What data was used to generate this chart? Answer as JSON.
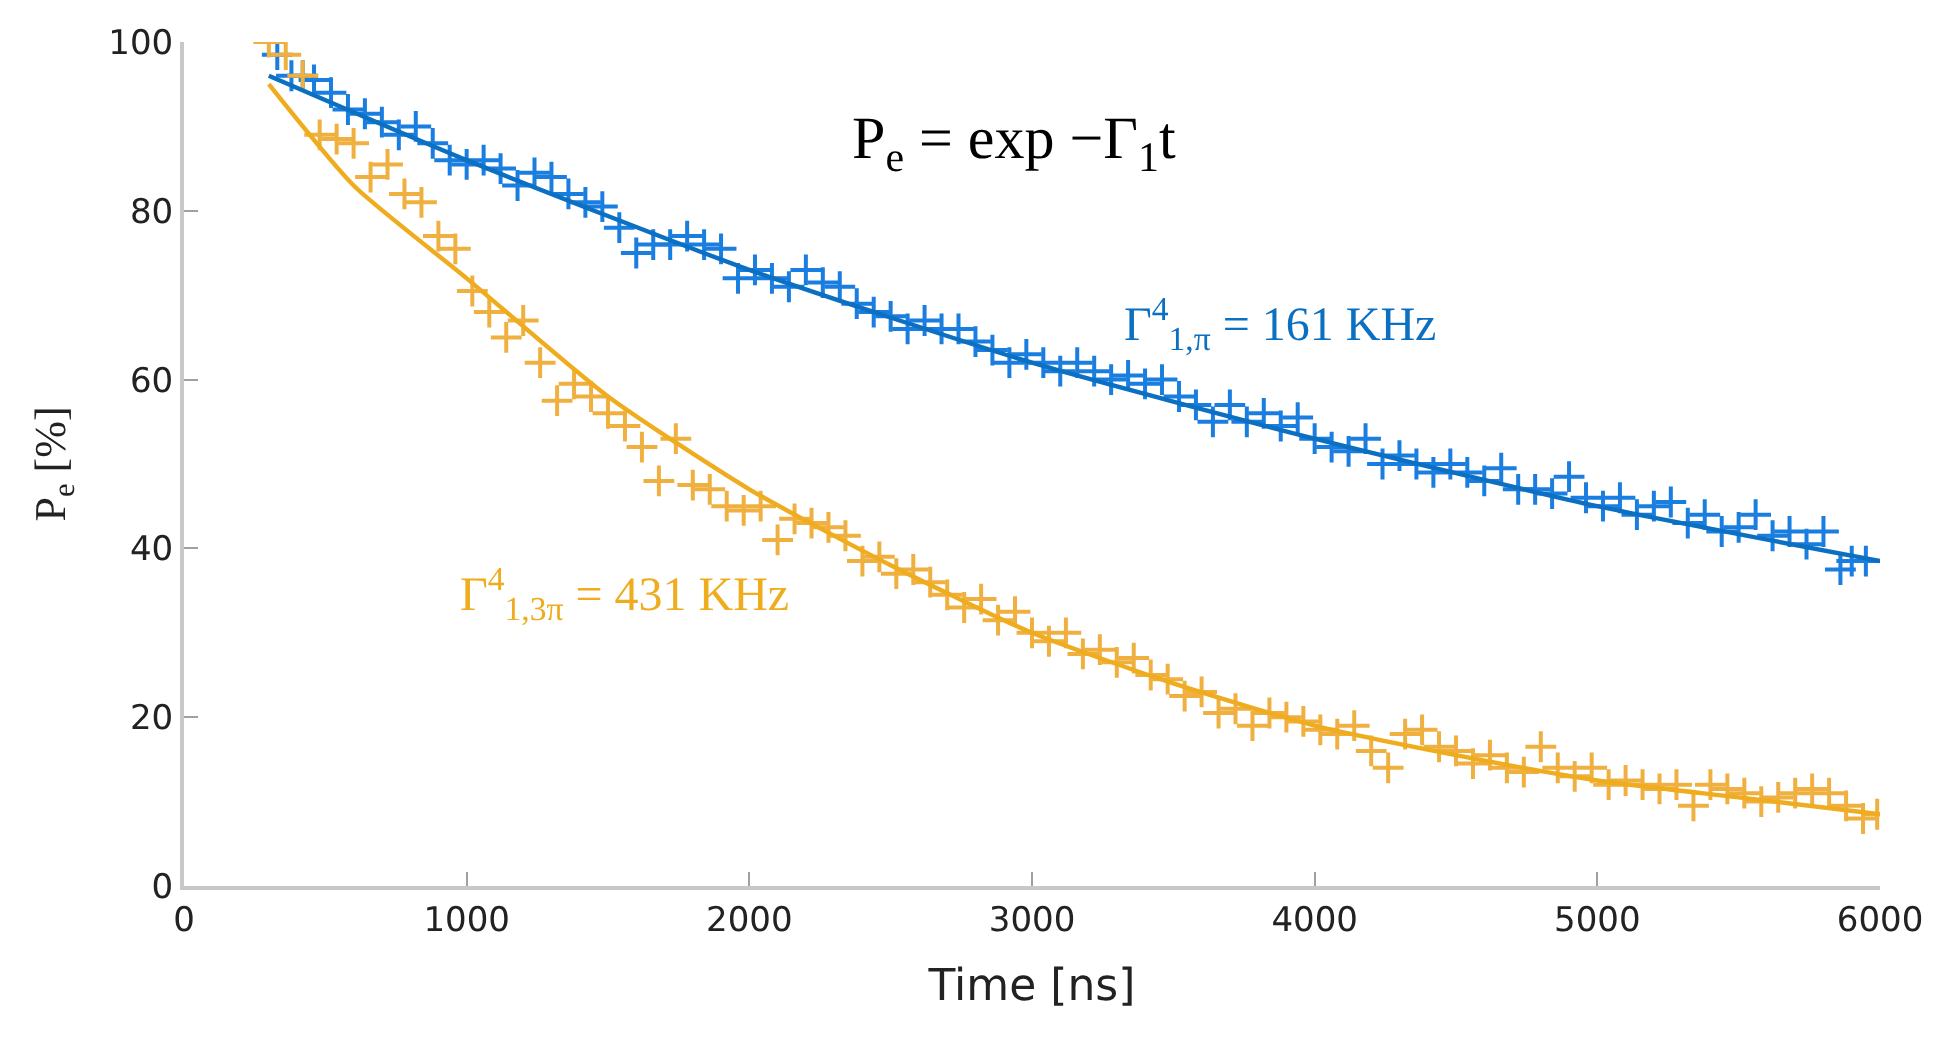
{
  "chart_data": {
    "type": "scatter",
    "xlabel": "Time [ns]",
    "ylabel": "P$_{e}$ [%]",
    "annotations": [
      "P$_{e}$ = exp −Γ$_{1}$t",
      "Γ$^{4}$$_{1,π}$ = 161 KHz",
      "Γ$^{4}$$_{1,3π}$ = 431 KHz"
    ],
    "xlim": [
      0,
      6000
    ],
    "xticks": [
      0,
      1000,
      2000,
      3000,
      4000,
      5000,
      6000
    ],
    "ylim": [
      0,
      100
    ],
    "yticks": [
      0,
      20,
      40,
      60,
      80,
      100
    ],
    "legend": false,
    "series": [
      {
        "marker": "cross",
        "color": "#1a7de0",
        "x": [
          330,
          380,
          420,
          460,
          520,
          580,
          640,
          700,
          760,
          820,
          880,
          940,
          1000,
          1060,
          1120,
          1180,
          1240,
          1300,
          1360,
          1420,
          1480,
          1540,
          1600,
          1660,
          1720,
          1780,
          1840,
          1900,
          1960,
          2020,
          2080,
          2140,
          2200,
          2260,
          2320,
          2380,
          2440,
          2500,
          2560,
          2620,
          2680,
          2740,
          2800,
          2860,
          2920,
          2980,
          3040,
          3100,
          3160,
          3220,
          3280,
          3340,
          3400,
          3460,
          3520,
          3580,
          3640,
          3700,
          3760,
          3820,
          3880,
          3940,
          4000,
          4060,
          4120,
          4180,
          4240,
          4300,
          4360,
          4420,
          4480,
          4540,
          4600,
          4660,
          4720,
          4780,
          4840,
          4900,
          4960,
          5020,
          5080,
          5140,
          5200,
          5260,
          5320,
          5380,
          5440,
          5500,
          5560,
          5620,
          5680,
          5740,
          5800,
          5860,
          5900,
          5950
        ],
        "values": [
          98.5,
          96,
          96,
          95.5,
          94,
          92,
          91.5,
          90.5,
          89,
          90,
          88,
          86,
          85.5,
          86,
          85,
          83,
          84.5,
          84,
          82,
          81,
          80.5,
          78,
          75,
          76,
          76,
          77,
          76,
          75.5,
          72,
          73,
          72,
          71,
          73,
          71.5,
          71,
          69,
          68,
          67.5,
          66,
          67,
          66,
          66,
          64.5,
          63.5,
          62,
          63,
          62,
          61,
          62,
          61,
          60,
          60.5,
          59.5,
          60,
          58,
          57,
          55,
          57,
          55,
          56,
          54.5,
          55.5,
          53,
          52,
          51.5,
          53,
          50,
          51,
          50,
          49,
          50,
          49,
          48,
          49.5,
          47,
          47,
          46.5,
          48.5,
          46,
          45,
          46,
          44,
          45,
          45.5,
          43,
          44,
          42,
          42.5,
          44,
          41.5,
          42,
          40.5,
          42,
          37.5,
          38.5,
          38.5
        ]
      },
      {
        "marker": "cross",
        "color": "#f0b040",
        "x": [
          300,
          360,
          420,
          480,
          540,
          600,
          660,
          720,
          780,
          840,
          900,
          960,
          1020,
          1080,
          1140,
          1200,
          1260,
          1320,
          1380,
          1440,
          1500,
          1560,
          1620,
          1680,
          1740,
          1800,
          1860,
          1920,
          1980,
          2040,
          2100,
          2160,
          2220,
          2280,
          2340,
          2400,
          2460,
          2520,
          2580,
          2640,
          2700,
          2760,
          2820,
          2880,
          2940,
          3000,
          3060,
          3120,
          3180,
          3240,
          3300,
          3360,
          3420,
          3480,
          3540,
          3600,
          3660,
          3720,
          3780,
          3840,
          3900,
          3960,
          4020,
          4080,
          4140,
          4200,
          4260,
          4320,
          4380,
          4440,
          4500,
          4560,
          4620,
          4680,
          4740,
          4800,
          4860,
          4920,
          4980,
          5040,
          5100,
          5160,
          5220,
          5280,
          5340,
          5400,
          5460,
          5520,
          5580,
          5640,
          5700,
          5760,
          5820,
          5880,
          5940,
          5990
        ],
        "values": [
          100,
          98.5,
          96,
          89,
          88.5,
          88,
          84,
          85.5,
          82,
          81,
          77,
          75.5,
          70.5,
          68,
          65,
          67,
          62,
          57.5,
          59.5,
          58,
          56,
          54.5,
          52,
          48,
          53,
          47.5,
          47,
          45,
          44.5,
          45,
          41,
          43.5,
          43,
          42.5,
          41.5,
          38.5,
          39,
          37,
          37.5,
          36,
          34.5,
          33,
          34,
          31.5,
          32.5,
          30,
          29,
          30,
          27.5,
          28,
          26.5,
          27,
          25,
          24.5,
          22.5,
          23,
          20.5,
          21,
          19,
          20.5,
          20,
          19.5,
          18.5,
          18,
          19,
          16,
          14,
          18,
          18.5,
          16.5,
          16,
          14.5,
          15.5,
          14,
          13.5,
          16.5,
          14,
          13,
          14,
          12,
          12.5,
          12,
          11.5,
          12,
          9.5,
          12,
          11.5,
          11,
          10,
          10.5,
          11,
          11.5,
          11,
          9.5,
          8,
          8.5
        ]
      },
      {
        "type": "line",
        "marker": "none",
        "color": "#0b6fc2",
        "x": [
          300,
          1000,
          2000,
          3000,
          4000,
          5000,
          6000
        ],
        "values": [
          96,
          86,
          73,
          62,
          53,
          45,
          38.5
        ]
      },
      {
        "type": "line",
        "marker": "none",
        "color": "#eeac1e",
        "x": [
          300,
          600,
          1000,
          1500,
          2000,
          2500,
          3000,
          3500,
          4000,
          4500,
          5000,
          5500,
          6000
        ],
        "values": [
          95,
          83,
          72,
          58,
          47,
          38,
          30,
          24,
          19,
          15.5,
          12.5,
          10.5,
          8.5
        ]
      }
    ]
  }
}
